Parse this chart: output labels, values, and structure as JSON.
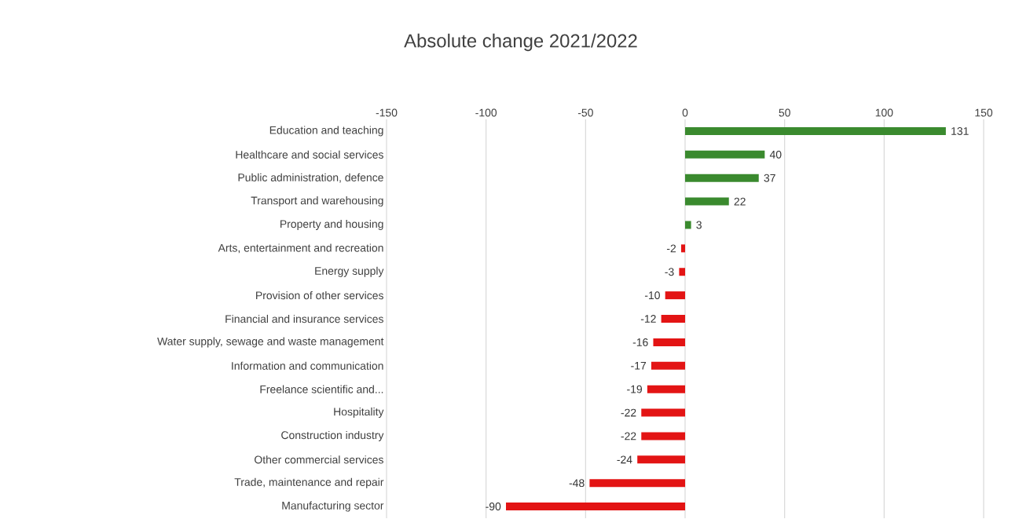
{
  "chart_data": {
    "type": "bar",
    "orientation": "horizontal",
    "title": "Absolute change 2021/2022",
    "categories": [
      "Education and teaching",
      "Healthcare and social services",
      "Public administration, defence",
      "Transport and warehousing",
      "Property and housing",
      "Arts, entertainment and recreation",
      "Energy supply",
      "Provision of other services",
      "Financial and insurance services",
      "Water supply, sewage and waste management",
      "Information and communication",
      "Freelance scientific and...",
      "Hospitality",
      "Construction industry",
      "Other commercial services",
      "Trade, maintenance and repair",
      "Manufacturing sector"
    ],
    "values": [
      131,
      40,
      37,
      22,
      3,
      -2,
      -3,
      -10,
      -12,
      -16,
      -17,
      -19,
      -22,
      -22,
      -24,
      -48,
      -90
    ],
    "colors": [
      "#3a8a2e",
      "#3a8a2e",
      "#3a8a2e",
      "#3a8a2e",
      "#3a8a2e",
      "#e31414",
      "#e31414",
      "#e31414",
      "#e31414",
      "#e31414",
      "#e31414",
      "#e31414",
      "#e31414",
      "#e31414",
      "#e31414",
      "#e31414",
      "#e31414"
    ],
    "xlim": [
      -150,
      150
    ],
    "xticks": [
      -150,
      -100,
      -50,
      0,
      50,
      100,
      150
    ],
    "grid": "x",
    "data_labels": true
  }
}
